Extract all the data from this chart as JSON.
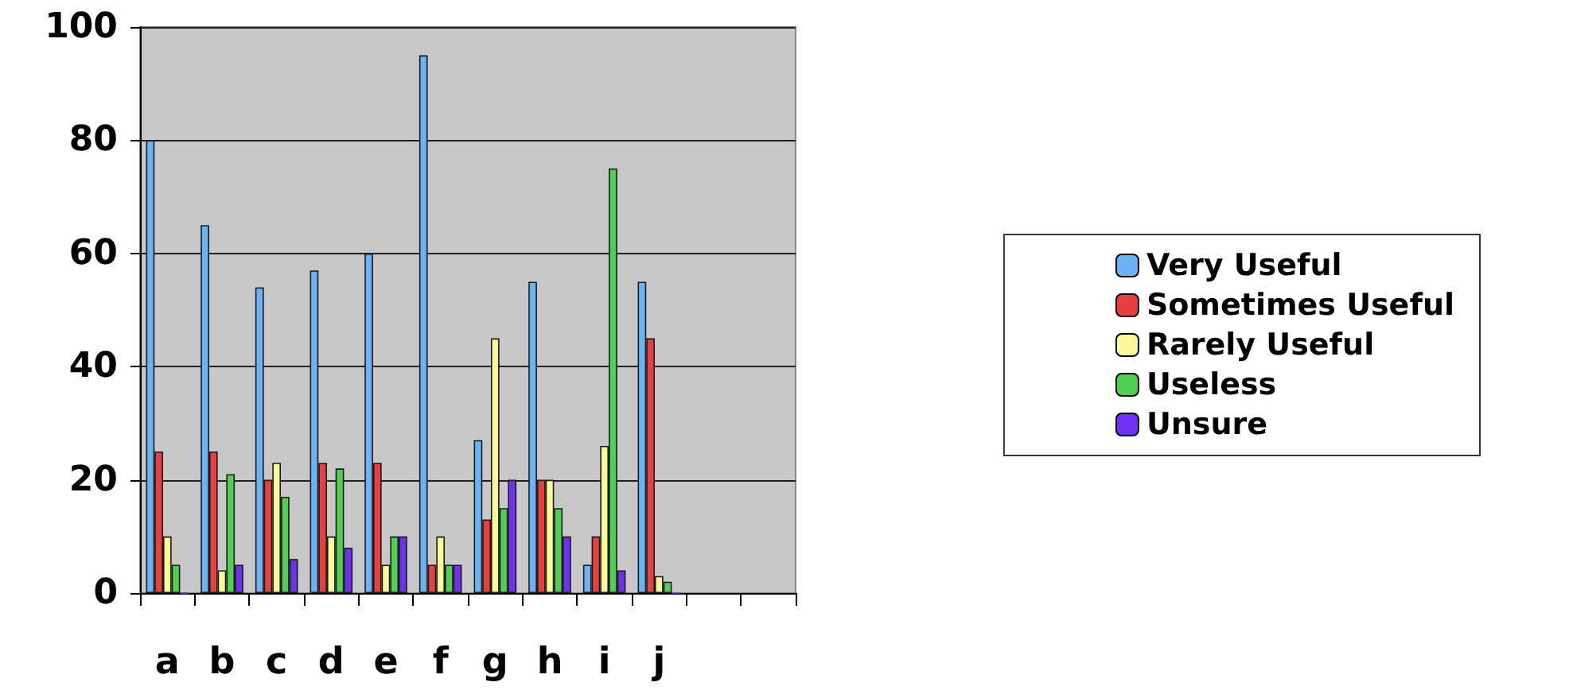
{
  "chart_data": {
    "type": "bar",
    "categories": [
      "a",
      "b",
      "c",
      "d",
      "e",
      "f",
      "g",
      "h",
      "i",
      "j",
      null,
      null
    ],
    "series": [
      {
        "name": "Very Useful",
        "color": "#6ab4f5",
        "values": [
          80,
          65,
          54,
          57,
          60,
          95,
          27,
          55,
          5,
          55,
          null,
          null
        ]
      },
      {
        "name": "Sometimes Useful",
        "color": "#e84040",
        "values": [
          25,
          25,
          20,
          23,
          23,
          5,
          13,
          20,
          10,
          45,
          null,
          null
        ]
      },
      {
        "name": "Rarely Useful",
        "color": "#fafa9a",
        "values": [
          10,
          4,
          23,
          10,
          5,
          10,
          45,
          20,
          26,
          3,
          null,
          null
        ]
      },
      {
        "name": "Useless",
        "color": "#50d050",
        "values": [
          5,
          21,
          17,
          22,
          10,
          5,
          15,
          15,
          75,
          2,
          null,
          null
        ]
      },
      {
        "name": "Unsure",
        "color": "#7030f0",
        "values": [
          0,
          5,
          6,
          8,
          10,
          5,
          20,
          10,
          4,
          0,
          null,
          null
        ]
      }
    ],
    "ylim": [
      0,
      100
    ],
    "yticks": [
      0,
      20,
      40,
      60,
      80,
      100
    ],
    "grid": "y",
    "legend": "right"
  }
}
